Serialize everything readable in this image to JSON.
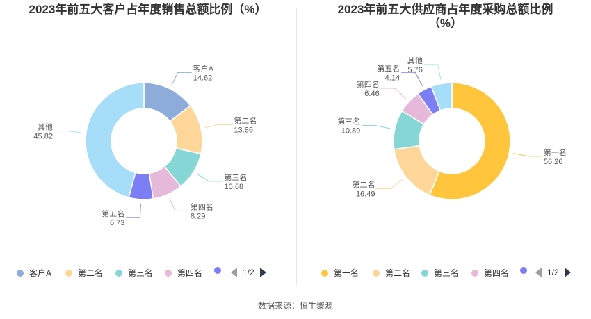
{
  "charts": [
    {
      "title": "2023年前五大客户占年度销售总额比例（%）",
      "chart_data": {
        "type": "pie",
        "categories": [
          "客户A",
          "第二名",
          "第三名",
          "第四名",
          "第五名",
          "其他"
        ],
        "values": [
          14.62,
          13.86,
          10.68,
          8.29,
          6.73,
          45.82
        ],
        "value_labels": [
          "14.62",
          "13.86",
          "10.68",
          "8.29",
          "6.73",
          "45.82"
        ],
        "colors": [
          "#8eacd9",
          "#ffd699",
          "#87d6d6",
          "#e6b8d9",
          "#7b7ef5",
          "#a6ddf8"
        ],
        "donut": true,
        "legend_position": "bottom"
      },
      "legend": {
        "items": [
          {
            "label": "客户A",
            "color": "#8eacd9"
          },
          {
            "label": "第二名",
            "color": "#ffd699"
          },
          {
            "label": "第三名",
            "color": "#87d6d6"
          },
          {
            "label": "第四名",
            "color": "#e6b8d9"
          },
          {
            "label": "第五名",
            "color": "#7b7ef5"
          }
        ],
        "page": "1/2"
      }
    },
    {
      "title": "2023年前五大供应商占年度采购总额比例（%）",
      "chart_data": {
        "type": "pie",
        "categories": [
          "第一名",
          "第二名",
          "第三名",
          "第四名",
          "第五名",
          "其他"
        ],
        "values": [
          56.26,
          16.49,
          10.89,
          6.46,
          4.14,
          5.76
        ],
        "value_labels": [
          "56.26",
          "16.49",
          "10.89",
          "6.46",
          "4.14",
          "5.76"
        ],
        "colors": [
          "#ffc53d",
          "#ffd699",
          "#87d6d6",
          "#e6b8d9",
          "#7b7ef5",
          "#a6ddf8"
        ],
        "donut": true,
        "legend_position": "bottom"
      },
      "legend": {
        "items": [
          {
            "label": "第一名",
            "color": "#ffc53d"
          },
          {
            "label": "第二名",
            "color": "#ffd699"
          },
          {
            "label": "第三名",
            "color": "#87d6d6"
          },
          {
            "label": "第四名",
            "color": "#e6b8d9"
          },
          {
            "label": "第五名",
            "color": "#7b7ef5"
          }
        ],
        "page": "1/2"
      }
    }
  ],
  "source": "数据来源：恒生聚源"
}
